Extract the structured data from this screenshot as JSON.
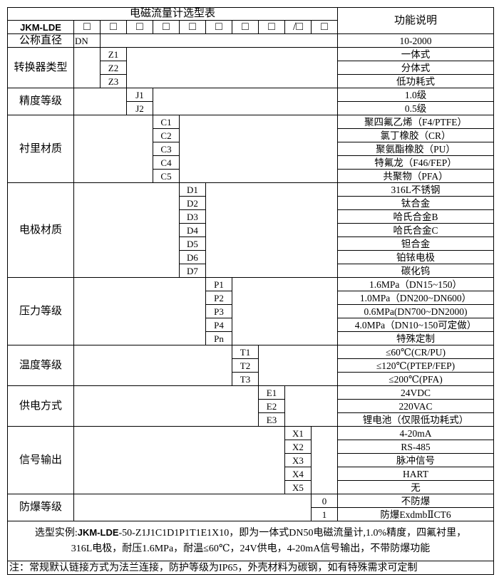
{
  "header": {
    "title": "电磁流量计选型表",
    "function_header": "功能说明",
    "model": "JKM-LDE",
    "boxes": [
      "□",
      "□",
      "□",
      "□",
      "□",
      "□",
      "□",
      "□",
      "/□",
      "□"
    ]
  },
  "nominal_diameter": {
    "label": "公称直径",
    "code": "DN",
    "desc": "10-2000"
  },
  "groups": [
    {
      "label": "转换器类型",
      "col": 1,
      "items": [
        {
          "code": "Z1",
          "desc": "一体式"
        },
        {
          "code": "Z2",
          "desc": "分体式"
        },
        {
          "code": "Z3",
          "desc": "低功耗式"
        }
      ]
    },
    {
      "label": "精度等级",
      "col": 2,
      "items": [
        {
          "code": "J1",
          "desc": "1.0级"
        },
        {
          "code": "J2",
          "desc": "0.5级"
        }
      ]
    },
    {
      "label": "衬里材质",
      "col": 3,
      "items": [
        {
          "code": "C1",
          "desc": "聚四氟乙烯（F4/PTFE）"
        },
        {
          "code": "C2",
          "desc": "氯丁橡胶（CR）"
        },
        {
          "code": "C3",
          "desc": "聚氨酯橡胶（PU）"
        },
        {
          "code": "C4",
          "desc": "特氟龙（F46/FEP）"
        },
        {
          "code": "C5",
          "desc": "共聚物（PFA）"
        }
      ]
    },
    {
      "label": "电极材质",
      "col": 4,
      "items": [
        {
          "code": "D1",
          "desc": "316L不锈钢"
        },
        {
          "code": "D2",
          "desc": "钛合金"
        },
        {
          "code": "D3",
          "desc": "哈氏合金B"
        },
        {
          "code": "D4",
          "desc": "哈氏合金C"
        },
        {
          "code": "D5",
          "desc": "钽合金"
        },
        {
          "code": "D6",
          "desc": "铂铱电极"
        },
        {
          "code": "D7",
          "desc": "碳化钨"
        }
      ]
    },
    {
      "label": "压力等级",
      "col": 5,
      "items": [
        {
          "code": "P1",
          "desc": "1.6MPa（DN15~150）"
        },
        {
          "code": "P2",
          "desc": "1.0MPa（DN200~DN600）"
        },
        {
          "code": "P3",
          "desc": "0.6MPa(DN700~DN2000)"
        },
        {
          "code": "P4",
          "desc": "4.0MPa（DN10~150可定做）"
        },
        {
          "code": "Pn",
          "desc": "特殊定制"
        }
      ]
    },
    {
      "label": "温度等级",
      "col": 6,
      "items": [
        {
          "code": "T1",
          "desc": "≤60℃(CR/PU)"
        },
        {
          "code": "T2",
          "desc": "≤120℃(PTEP/FEP)"
        },
        {
          "code": "T3",
          "desc": "≤200℃(PFA)"
        }
      ]
    },
    {
      "label": "供电方式",
      "col": 7,
      "items": [
        {
          "code": "E1",
          "desc": "24VDC"
        },
        {
          "code": "E2",
          "desc": "220VAC"
        },
        {
          "code": "E3",
          "desc": "锂电池（仅限低功耗式）"
        }
      ]
    },
    {
      "label": "信号输出",
      "col": 8,
      "items": [
        {
          "code": "X1",
          "desc": "4-20mA"
        },
        {
          "code": "X2",
          "desc": "RS-485"
        },
        {
          "code": "X3",
          "desc": "脉冲信号"
        },
        {
          "code": "X4",
          "desc": "HART"
        },
        {
          "code": "X5",
          "desc": "无"
        }
      ]
    },
    {
      "label": "防爆等级",
      "col": 9,
      "items": [
        {
          "code": "0",
          "desc": "不防爆"
        },
        {
          "code": "1",
          "desc": "防爆ExdmbⅡCT6"
        }
      ]
    }
  ],
  "example": {
    "prefix": "选型实例:",
    "model": "JKM-LDE",
    "line1_rest": "-50-Z1J1C1D1P1T1E1X10，即为一体式DN50电磁流量计,1.0%精度，四氟衬里，",
    "line2": "316L电极，耐压1.6MPa，耐温≤60℃，24V供电，4-20mA信号输出，不带防爆功能"
  },
  "note": "注：常规默认链接方式为法兰连接，防护等级为IP65，外壳材料为碳钢，如有特殊需求可定制"
}
